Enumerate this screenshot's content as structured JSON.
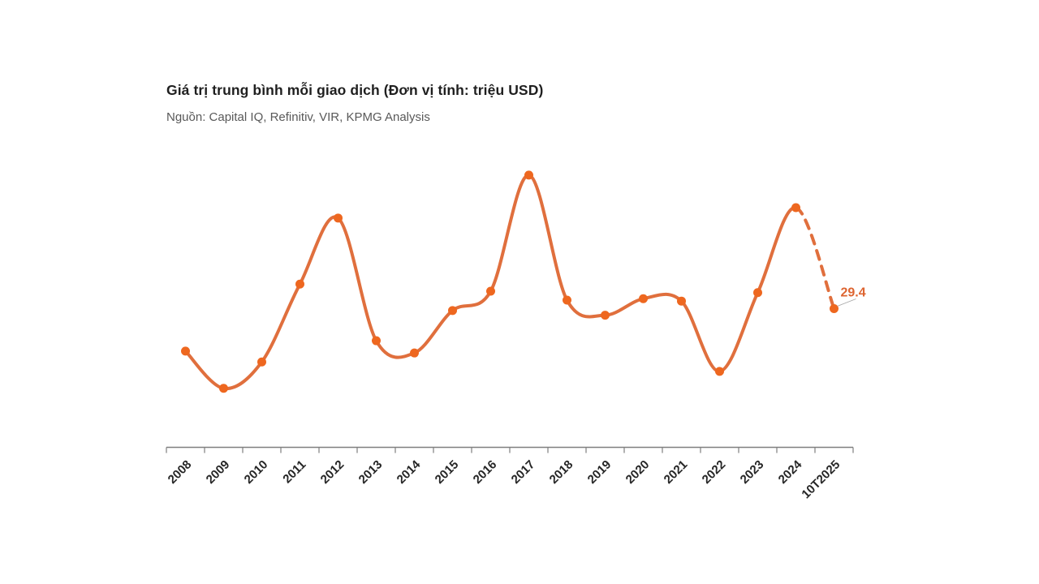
{
  "chart": {
    "title": "Giá trị trung bình mỗi giao dịch (Đơn vị tính: triệu USD)",
    "source": "Nguồn: Capital IQ, Refinitiv, VIR, KPMG Analysis"
  },
  "chart_data": {
    "type": "line",
    "title": "Giá trị trung bình mỗi giao dịch (Đơn vị tính: triệu USD)",
    "subtitle": "Nguồn: Capital IQ, Refinitiv, VIR, KPMG Analysis",
    "xlabel": "",
    "ylabel": "triệu USD",
    "categories": [
      "2008",
      "2009",
      "2010",
      "2011",
      "2012",
      "2013",
      "2014",
      "2015",
      "2016",
      "2017",
      "2018",
      "2019",
      "2020",
      "2021",
      "2022",
      "2023",
      "2024",
      "10T2025"
    ],
    "values": [
      20.4,
      12.5,
      18.1,
      34.6,
      48.6,
      22.6,
      20.0,
      29.0,
      33.1,
      57.7,
      31.2,
      28.0,
      31.5,
      31.0,
      16.1,
      32.8,
      50.8,
      29.4
    ],
    "data_labels": [
      {
        "index": 17,
        "label": "29.4"
      }
    ],
    "dashed_from_index": 16,
    "smooth": true,
    "grid": false,
    "legend": false,
    "y_axis_visible": false,
    "ylim": [
      0,
      65
    ],
    "colors": {
      "line": "#e06f3d",
      "marker": "#ee671f",
      "data_label": "#dd6430",
      "axis": "#7f7f7f",
      "tick_label": "#262626",
      "leader_line": "#a6a6a6"
    }
  }
}
